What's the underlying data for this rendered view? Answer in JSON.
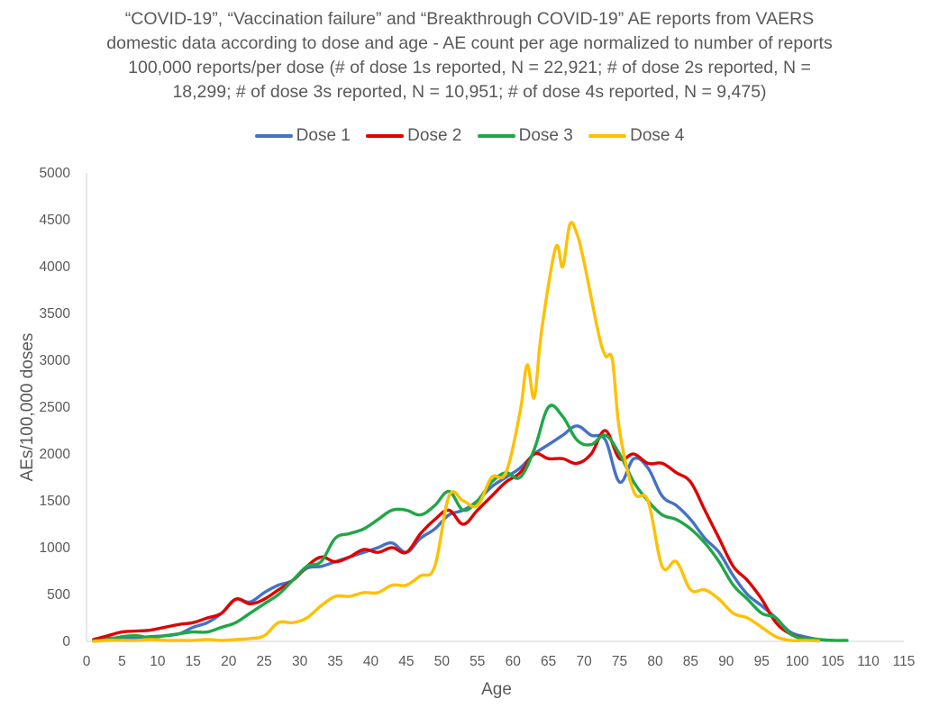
{
  "chart_data": {
    "type": "line",
    "title_lines": [
      "“COVID-19”, “Vaccination failure” and “Breakthrough COVID-19” AE reports from VAERS",
      "domestic data according to dose and age - AE count per age normalized to number of reports",
      "100,000 reports/per dose (# of dose 1s reported, N = 22,921; # of dose 2s reported, N =",
      "18,299; # of dose 3s reported, N = 10,951; # of dose 4s reported, N = 9,475)"
    ],
    "xlabel": "Age",
    "ylabel": "AEs/100,000 doses",
    "xlim": [
      0,
      115
    ],
    "ylim": [
      0,
      5000
    ],
    "x_ticks": [
      "0",
      "5",
      "10",
      "15",
      "20",
      "25",
      "30",
      "35",
      "40",
      "45",
      "50",
      "55",
      "60",
      "65",
      "70",
      "75",
      "80",
      "85",
      "90",
      "95",
      "100",
      "105",
      "110",
      "115"
    ],
    "y_ticks": [
      "0",
      "500",
      "1000",
      "1500",
      "2000",
      "2500",
      "3000",
      "3500",
      "4000",
      "4500",
      "5000"
    ],
    "legend_position": "top",
    "series": [
      {
        "name": "Dose 1",
        "color": "#4472C4",
        "points": [
          [
            1,
            10
          ],
          [
            3,
            30
          ],
          [
            5,
            40
          ],
          [
            7,
            40
          ],
          [
            9,
            50
          ],
          [
            11,
            60
          ],
          [
            13,
            80
          ],
          [
            15,
            150
          ],
          [
            17,
            200
          ],
          [
            19,
            300
          ],
          [
            21,
            450
          ],
          [
            23,
            420
          ],
          [
            25,
            520
          ],
          [
            27,
            600
          ],
          [
            29,
            650
          ],
          [
            31,
            780
          ],
          [
            33,
            800
          ],
          [
            35,
            850
          ],
          [
            37,
            900
          ],
          [
            39,
            950
          ],
          [
            41,
            1000
          ],
          [
            43,
            1050
          ],
          [
            45,
            950
          ],
          [
            47,
            1100
          ],
          [
            49,
            1200
          ],
          [
            51,
            1350
          ],
          [
            53,
            1400
          ],
          [
            55,
            1500
          ],
          [
            57,
            1650
          ],
          [
            59,
            1750
          ],
          [
            61,
            1850
          ],
          [
            63,
            2000
          ],
          [
            65,
            2100
          ],
          [
            67,
            2200
          ],
          [
            69,
            2300
          ],
          [
            71,
            2200
          ],
          [
            73,
            2150
          ],
          [
            75,
            1700
          ],
          [
            77,
            1950
          ],
          [
            79,
            1850
          ],
          [
            81,
            1550
          ],
          [
            83,
            1450
          ],
          [
            85,
            1300
          ],
          [
            87,
            1100
          ],
          [
            89,
            950
          ],
          [
            91,
            700
          ],
          [
            93,
            500
          ],
          [
            95,
            380
          ],
          [
            97,
            250
          ],
          [
            99,
            100
          ],
          [
            101,
            50
          ],
          [
            103,
            20
          ],
          [
            105,
            10
          ]
        ]
      },
      {
        "name": "Dose 2",
        "color": "#E00000",
        "points": [
          [
            1,
            20
          ],
          [
            3,
            60
          ],
          [
            5,
            100
          ],
          [
            7,
            110
          ],
          [
            9,
            120
          ],
          [
            11,
            150
          ],
          [
            13,
            180
          ],
          [
            15,
            200
          ],
          [
            17,
            250
          ],
          [
            19,
            300
          ],
          [
            21,
            450
          ],
          [
            23,
            400
          ],
          [
            25,
            450
          ],
          [
            27,
            550
          ],
          [
            29,
            650
          ],
          [
            31,
            800
          ],
          [
            33,
            900
          ],
          [
            35,
            850
          ],
          [
            37,
            900
          ],
          [
            39,
            980
          ],
          [
            41,
            950
          ],
          [
            43,
            1000
          ],
          [
            45,
            950
          ],
          [
            47,
            1150
          ],
          [
            49,
            1300
          ],
          [
            51,
            1400
          ],
          [
            53,
            1250
          ],
          [
            55,
            1400
          ],
          [
            57,
            1550
          ],
          [
            59,
            1700
          ],
          [
            61,
            1800
          ],
          [
            63,
            2000
          ],
          [
            65,
            1950
          ],
          [
            67,
            1950
          ],
          [
            69,
            1900
          ],
          [
            71,
            2000
          ],
          [
            73,
            2250
          ],
          [
            75,
            1950
          ],
          [
            77,
            2000
          ],
          [
            79,
            1900
          ],
          [
            81,
            1900
          ],
          [
            83,
            1800
          ],
          [
            85,
            1700
          ],
          [
            87,
            1400
          ],
          [
            89,
            1100
          ],
          [
            91,
            800
          ],
          [
            93,
            650
          ],
          [
            95,
            450
          ],
          [
            97,
            200
          ],
          [
            99,
            80
          ],
          [
            101,
            30
          ],
          [
            103,
            10
          ]
        ]
      },
      {
        "name": "Dose 3",
        "color": "#1FA745",
        "points": [
          [
            1,
            5
          ],
          [
            3,
            20
          ],
          [
            5,
            50
          ],
          [
            7,
            60
          ],
          [
            9,
            40
          ],
          [
            11,
            60
          ],
          [
            13,
            80
          ],
          [
            15,
            100
          ],
          [
            17,
            100
          ],
          [
            19,
            150
          ],
          [
            21,
            200
          ],
          [
            23,
            300
          ],
          [
            25,
            400
          ],
          [
            27,
            500
          ],
          [
            29,
            650
          ],
          [
            31,
            800
          ],
          [
            33,
            850
          ],
          [
            35,
            1100
          ],
          [
            37,
            1150
          ],
          [
            39,
            1200
          ],
          [
            41,
            1300
          ],
          [
            43,
            1400
          ],
          [
            45,
            1400
          ],
          [
            47,
            1350
          ],
          [
            49,
            1450
          ],
          [
            51,
            1600
          ],
          [
            53,
            1400
          ],
          [
            55,
            1500
          ],
          [
            57,
            1700
          ],
          [
            59,
            1800
          ],
          [
            61,
            1750
          ],
          [
            63,
            2050
          ],
          [
            65,
            2500
          ],
          [
            67,
            2400
          ],
          [
            69,
            2150
          ],
          [
            71,
            2100
          ],
          [
            73,
            2200
          ],
          [
            75,
            2000
          ],
          [
            77,
            1700
          ],
          [
            79,
            1500
          ],
          [
            81,
            1350
          ],
          [
            83,
            1300
          ],
          [
            85,
            1200
          ],
          [
            87,
            1050
          ],
          [
            89,
            850
          ],
          [
            91,
            600
          ],
          [
            93,
            450
          ],
          [
            95,
            300
          ],
          [
            97,
            250
          ],
          [
            99,
            80
          ],
          [
            101,
            30
          ],
          [
            103,
            20
          ],
          [
            105,
            10
          ],
          [
            107,
            10
          ]
        ]
      },
      {
        "name": "Dose 4",
        "color": "#FFC000",
        "points": [
          [
            1,
            0
          ],
          [
            3,
            10
          ],
          [
            5,
            10
          ],
          [
            7,
            10
          ],
          [
            9,
            20
          ],
          [
            11,
            10
          ],
          [
            13,
            10
          ],
          [
            15,
            10
          ],
          [
            17,
            20
          ],
          [
            19,
            10
          ],
          [
            21,
            20
          ],
          [
            23,
            30
          ],
          [
            25,
            60
          ],
          [
            27,
            200
          ],
          [
            29,
            200
          ],
          [
            31,
            250
          ],
          [
            33,
            380
          ],
          [
            35,
            480
          ],
          [
            37,
            480
          ],
          [
            39,
            520
          ],
          [
            41,
            520
          ],
          [
            43,
            600
          ],
          [
            45,
            600
          ],
          [
            47,
            700
          ],
          [
            49,
            800
          ],
          [
            51,
            1550
          ],
          [
            53,
            1500
          ],
          [
            55,
            1450
          ],
          [
            57,
            1750
          ],
          [
            59,
            1800
          ],
          [
            61,
            2450
          ],
          [
            62,
            2950
          ],
          [
            63,
            2600
          ],
          [
            64,
            3300
          ],
          [
            66,
            4200
          ],
          [
            67,
            4000
          ],
          [
            68,
            4450
          ],
          [
            69,
            4350
          ],
          [
            70,
            4050
          ],
          [
            72,
            3300
          ],
          [
            73,
            3050
          ],
          [
            74,
            3000
          ],
          [
            75,
            2250
          ],
          [
            77,
            1600
          ],
          [
            79,
            1500
          ],
          [
            81,
            800
          ],
          [
            83,
            850
          ],
          [
            85,
            550
          ],
          [
            87,
            550
          ],
          [
            89,
            450
          ],
          [
            91,
            300
          ],
          [
            93,
            250
          ],
          [
            95,
            150
          ],
          [
            97,
            50
          ],
          [
            99,
            10
          ],
          [
            101,
            10
          ],
          [
            103,
            5
          ]
        ]
      }
    ]
  }
}
